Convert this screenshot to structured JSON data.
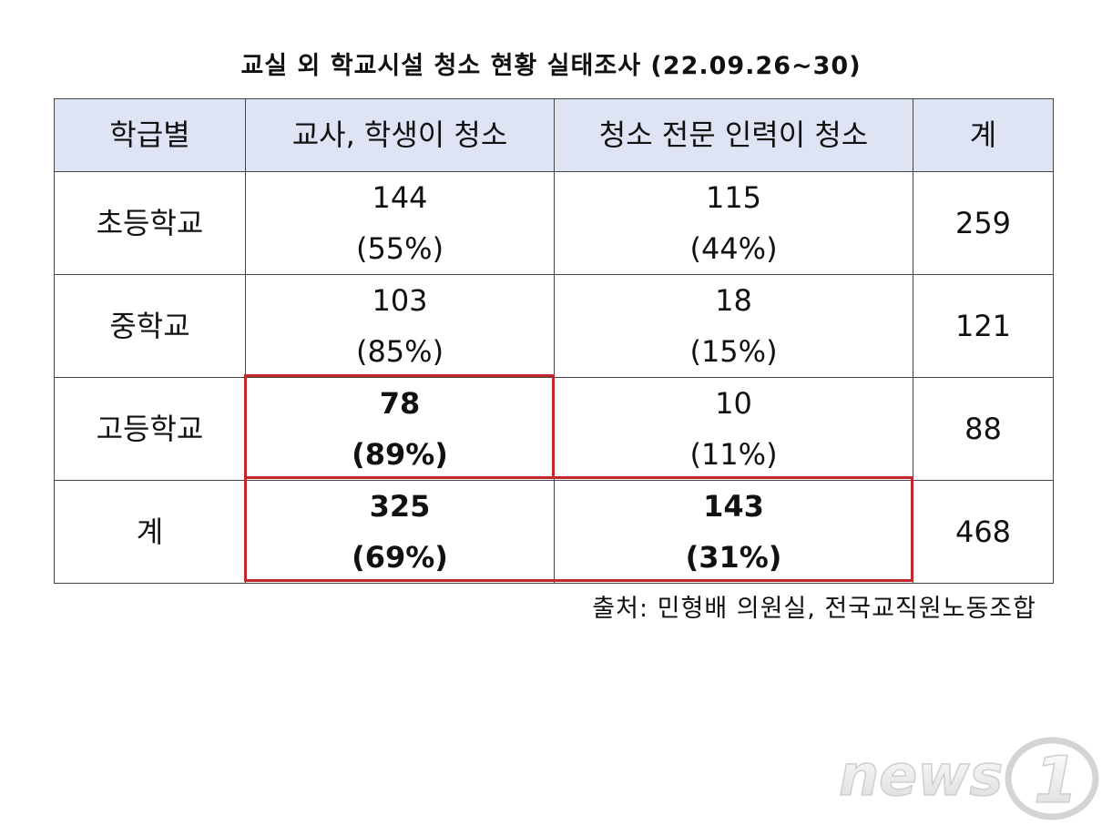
{
  "title": "교실 외 학교시설 청소 현황 실태조사 (22.09.26~30)",
  "table": {
    "headers": [
      "학급별",
      "교사, 학생이 청소",
      "청소 전문 인력이 청소",
      "계"
    ],
    "rows": [
      {
        "label": "초등학교",
        "teacher_student": {
          "value": "144",
          "pct": "(55%)"
        },
        "professional": {
          "value": "115",
          "pct": "(44%)"
        },
        "total": "259"
      },
      {
        "label": "중학교",
        "teacher_student": {
          "value": "103",
          "pct": "(85%)"
        },
        "professional": {
          "value": "18",
          "pct": "(15%)"
        },
        "total": "121"
      },
      {
        "label": "고등학교",
        "teacher_student": {
          "value": "78",
          "pct": "(89%)"
        },
        "professional": {
          "value": "10",
          "pct": "(11%)"
        },
        "total": "88"
      },
      {
        "label": "계",
        "teacher_student": {
          "value": "325",
          "pct": "(69%)"
        },
        "professional": {
          "value": "143",
          "pct": "(31%)"
        },
        "total": "468"
      }
    ]
  },
  "source": "출처: 민형배 의원실, 전국교직원노동조합",
  "logo": {
    "text": "news1",
    "icon": "news1-logo"
  },
  "colors": {
    "header_background": "#dee4f4",
    "highlight_border": "#c0282d",
    "grid": "#444444"
  }
}
